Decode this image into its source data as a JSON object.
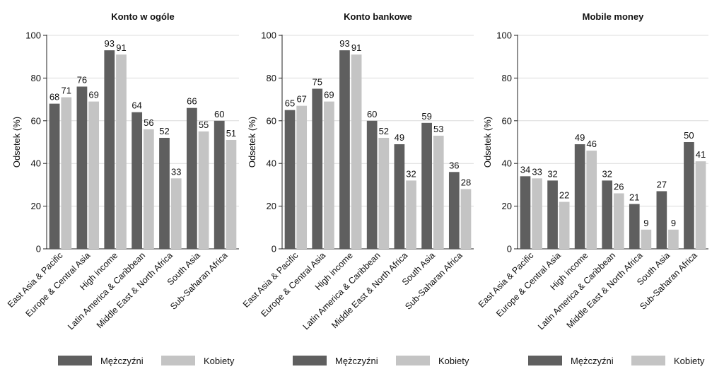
{
  "colors": {
    "men": "#5f5f5f",
    "women": "#c4c4c4",
    "grid": "#dcdcdc",
    "axis": "#222222"
  },
  "legend_labels": {
    "men": "Mężczyźni",
    "women": "Kobiety"
  },
  "chart_data": [
    {
      "type": "bar",
      "title": "Konto w ogóle",
      "ylabel": "Odsetek (%)",
      "ylim": [
        0,
        100
      ],
      "yticks": [
        0,
        20,
        40,
        60,
        80,
        100
      ],
      "grid": true,
      "legend_position": "bottom",
      "categories": [
        "East Asia & Pacific",
        "Europe & Central Asia",
        "High income",
        "Latin America & Caribbean",
        "Middle East & North Africa",
        "South Asia",
        "Sub-Saharan Africa"
      ],
      "series": [
        {
          "name": "Mężczyźni",
          "values": [
            68,
            76,
            93,
            64,
            52,
            66,
            60
          ]
        },
        {
          "name": "Kobiety",
          "values": [
            71,
            69,
            91,
            56,
            33,
            55,
            51
          ]
        }
      ]
    },
    {
      "type": "bar",
      "title": "Konto bankowe",
      "ylabel": "Odsetek (%)",
      "ylim": [
        0,
        100
      ],
      "yticks": [
        0,
        20,
        40,
        60,
        80,
        100
      ],
      "grid": true,
      "legend_position": "bottom",
      "categories": [
        "East Asia & Pacific",
        "Europe & Central Asia",
        "High income",
        "Latin America & Caribbean",
        "Middle East & North Africa",
        "South Asia",
        "Sub-Saharan Africa"
      ],
      "series": [
        {
          "name": "Mężczyźni",
          "values": [
            65,
            75,
            93,
            60,
            49,
            59,
            36
          ]
        },
        {
          "name": "Kobiety",
          "values": [
            67,
            69,
            91,
            52,
            32,
            53,
            28
          ]
        }
      ]
    },
    {
      "type": "bar",
      "title": "Mobile money",
      "ylabel": "Odsetek (%)",
      "ylim": [
        0,
        100
      ],
      "yticks": [
        0,
        20,
        40,
        60,
        80,
        100
      ],
      "grid": true,
      "legend_position": "bottom",
      "categories": [
        "East Asia & Pacific",
        "Europe & Central Asia",
        "High income",
        "Latin America & Caribbean",
        "Middle East & North Africa",
        "South Asia",
        "Sub-Saharan Africa"
      ],
      "series": [
        {
          "name": "Mężczyźni",
          "values": [
            34,
            32,
            49,
            32,
            21,
            27,
            50
          ]
        },
        {
          "name": "Kobiety",
          "values": [
            33,
            22,
            46,
            26,
            9,
            9,
            41
          ]
        }
      ]
    }
  ]
}
